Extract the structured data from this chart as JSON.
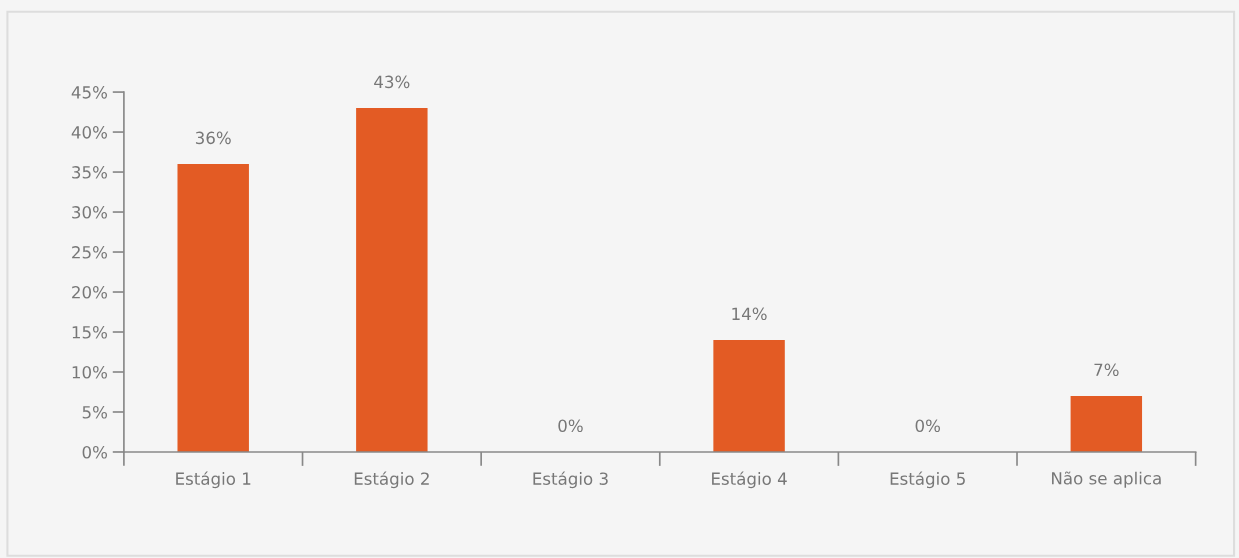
{
  "chart_data": {
    "type": "bar",
    "categories": [
      "Estágio 1",
      "Estágio 2",
      "Estágio 3",
      "Estágio 4",
      "Estágio 5",
      "Não se aplica"
    ],
    "values": [
      36,
      43,
      0,
      14,
      0,
      7
    ],
    "value_labels": [
      "36%",
      "43%",
      "0%",
      "14%",
      "0%",
      "7%"
    ],
    "color": "#e35b24",
    "ylim": [
      0,
      45
    ],
    "yticks": [
      {
        "value": 0,
        "label": "0%"
      },
      {
        "value": 5,
        "label": "5%"
      },
      {
        "value": 10,
        "label": "10%"
      },
      {
        "value": 15,
        "label": "15%"
      },
      {
        "value": 20,
        "label": "20%"
      },
      {
        "value": 25,
        "label": "25%"
      },
      {
        "value": 30,
        "label": "30%"
      },
      {
        "value": 35,
        "label": "35%"
      },
      {
        "value": 40,
        "label": "40%"
      },
      {
        "value": 45,
        "label": "45%"
      }
    ],
    "grid": false,
    "legend": false
  }
}
